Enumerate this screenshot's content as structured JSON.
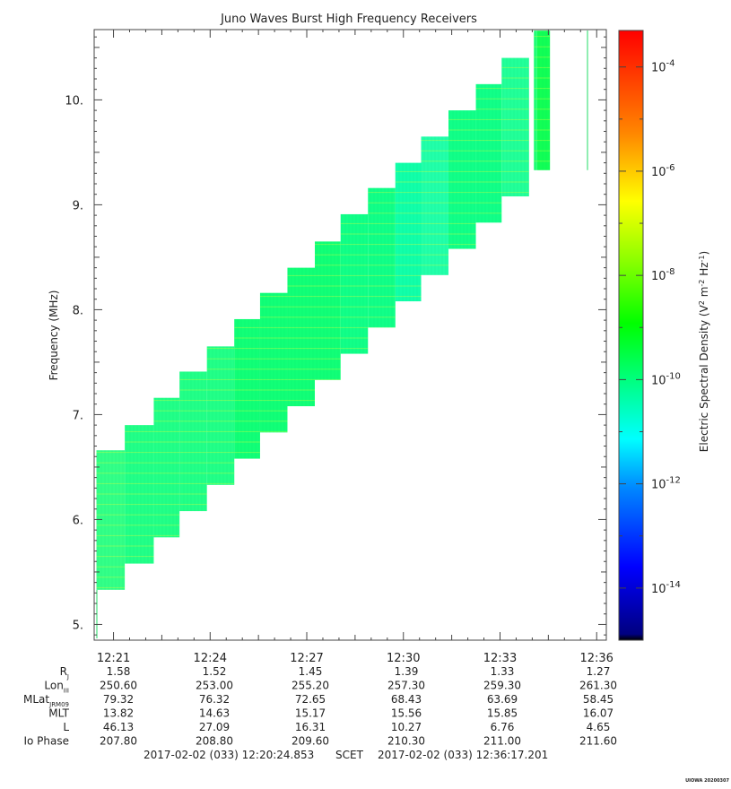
{
  "chart_data": {
    "type": "heatmap",
    "title": "Juno Waves Burst High Frequency Receivers",
    "ylabel": "Frequency (MHz)",
    "ylim": [
      4.85,
      10.67
    ],
    "yticks": [
      5,
      6,
      7,
      8,
      9,
      10
    ],
    "ytick_labels": [
      "5.",
      "6.",
      "7.",
      "8.",
      "9.",
      "10."
    ],
    "xlim_minutes": [
      20.4,
      36.3
    ],
    "xticks": [
      "12:21",
      "12:24",
      "12:27",
      "12:30",
      "12:33",
      "12:36"
    ],
    "colorbar": {
      "label_prefix": "Electric Spectral Density (V",
      "label_suffix": ")",
      "log_min": -15,
      "log_max": -3.3,
      "ticks": [
        {
          "exp": -4,
          "base": "10",
          "sup": "-4"
        },
        {
          "exp": -6,
          "base": "10",
          "sup": "-6"
        },
        {
          "exp": -8,
          "base": "10",
          "sup": "-8"
        },
        {
          "exp": -10,
          "base": "10",
          "sup": "-10"
        },
        {
          "exp": -12,
          "base": "10",
          "sup": "-12"
        },
        {
          "exp": -14,
          "base": "10",
          "sup": "-14"
        }
      ]
    },
    "blocks": [
      {
        "t0": 20.47,
        "t1": 21.35,
        "f0": 5.33,
        "f1": 6.66,
        "color": "#33ff88"
      },
      {
        "t0": 21.35,
        "t1": 22.25,
        "f0": 5.58,
        "f1": 6.9,
        "color": "#22ff88"
      },
      {
        "t0": 22.25,
        "t1": 23.05,
        "f0": 5.83,
        "f1": 7.16,
        "color": "#22ff88"
      },
      {
        "t0": 23.05,
        "t1": 23.9,
        "f0": 6.08,
        "f1": 7.41,
        "color": "#22ff88"
      },
      {
        "t0": 23.9,
        "t1": 24.75,
        "f0": 6.33,
        "f1": 7.65,
        "color": "#22ff88"
      },
      {
        "t0": 24.75,
        "t1": 25.55,
        "f0": 6.58,
        "f1": 7.91,
        "color": "#11ff77"
      },
      {
        "t0": 25.55,
        "t1": 26.4,
        "f0": 6.83,
        "f1": 8.16,
        "color": "#11ff77"
      },
      {
        "t0": 26.4,
        "t1": 27.25,
        "f0": 7.08,
        "f1": 8.4,
        "color": "#11ff77"
      },
      {
        "t0": 27.25,
        "t1": 28.05,
        "f0": 7.33,
        "f1": 8.65,
        "color": "#11ff77"
      },
      {
        "t0": 28.05,
        "t1": 28.9,
        "f0": 7.58,
        "f1": 8.91,
        "color": "#11ff88"
      },
      {
        "t0": 28.9,
        "t1": 29.75,
        "f0": 7.83,
        "f1": 9.16,
        "color": "#11ff88"
      },
      {
        "t0": 29.75,
        "t1": 30.55,
        "f0": 8.08,
        "f1": 9.4,
        "color": "#11ffaa"
      },
      {
        "t0": 30.55,
        "t1": 31.4,
        "f0": 8.33,
        "f1": 9.65,
        "color": "#22ffaa"
      },
      {
        "t0": 31.4,
        "t1": 32.25,
        "f0": 8.58,
        "f1": 9.9,
        "color": "#11ff88"
      },
      {
        "t0": 32.25,
        "t1": 33.05,
        "f0": 8.83,
        "f1": 10.15,
        "color": "#11ff88"
      },
      {
        "t0": 33.05,
        "t1": 33.9,
        "f0": 9.08,
        "f1": 10.4,
        "color": "#22ff99"
      },
      {
        "t0": 34.05,
        "t1": 34.15,
        "f0": 9.33,
        "f1": 10.66,
        "color": "#22ff77"
      },
      {
        "t0": 34.15,
        "t1": 34.55,
        "f0": 9.33,
        "f1": 10.66,
        "color": "#11ff55"
      }
    ]
  },
  "ephemeris": {
    "rows": [
      {
        "label": "R",
        "sub": "J",
        "values": [
          "1.58",
          "1.52",
          "1.45",
          "1.39",
          "1.33",
          "1.27"
        ]
      },
      {
        "label": "Lon",
        "sub": "III",
        "values": [
          "250.60",
          "253.00",
          "255.20",
          "257.30",
          "259.30",
          "261.30"
        ]
      },
      {
        "label": "MLat",
        "sub": "JRM09",
        "values": [
          "79.32",
          "76.32",
          "72.65",
          "68.43",
          "63.69",
          "58.45"
        ]
      },
      {
        "label": "MLT",
        "sub": "",
        "values": [
          "13.82",
          "14.63",
          "15.17",
          "15.56",
          "15.85",
          "16.07"
        ]
      },
      {
        "label": "L",
        "sub": "",
        "values": [
          "46.13",
          "27.09",
          "16.31",
          "10.27",
          "6.76",
          "4.65"
        ]
      },
      {
        "label": "Io Phase",
        "sub": "",
        "values": [
          "207.80",
          "208.80",
          "209.60",
          "210.30",
          "211.00",
          "211.60"
        ]
      }
    ]
  },
  "footer": {
    "start": "2017-02-02 (033) 12:20:24.853",
    "scet": "SCET",
    "end": "2017-02-02 (033) 12:36:17.201"
  },
  "stamp": "UIOWA 20200307"
}
